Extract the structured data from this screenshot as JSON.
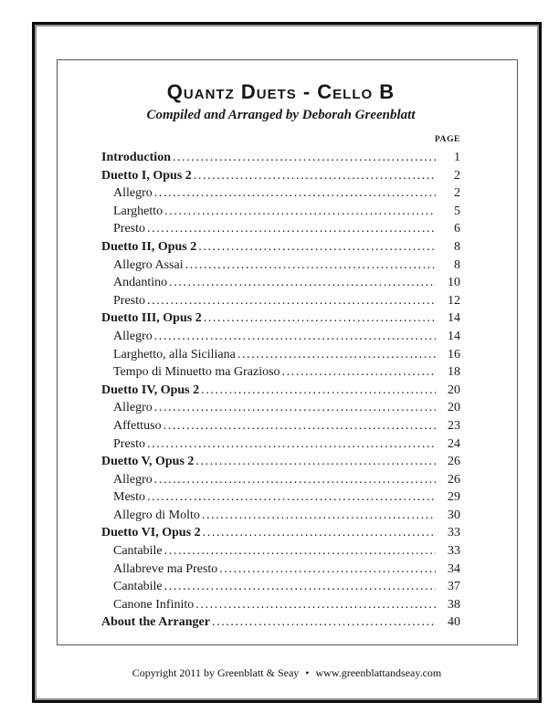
{
  "header": {
    "title": "Quantz Duets - Cello B",
    "subtitle": "Compiled and Arranged by Deborah Greenblatt"
  },
  "toc": {
    "page_column_label": "PAGE",
    "entries": [
      {
        "label": "Introduction",
        "page": "1",
        "level": 0
      },
      {
        "label": "Duetto I, Opus 2",
        "page": "2",
        "level": 0
      },
      {
        "label": "Allegro",
        "page": "2",
        "level": 1
      },
      {
        "label": "Larghetto",
        "page": "5",
        "level": 1
      },
      {
        "label": "Presto",
        "page": "6",
        "level": 1
      },
      {
        "label": "Duetto II, Opus 2",
        "page": "8",
        "level": 0
      },
      {
        "label": "Allegro Assai",
        "page": "8",
        "level": 1
      },
      {
        "label": "Andantino",
        "page": "10",
        "level": 1
      },
      {
        "label": "Presto",
        "page": "12",
        "level": 1
      },
      {
        "label": "Duetto III, Opus 2",
        "page": "14",
        "level": 0
      },
      {
        "label": "Allegro",
        "page": "14",
        "level": 1
      },
      {
        "label": "Larghetto, alla Siciliana",
        "page": "16",
        "level": 1
      },
      {
        "label": "Tempo di Minuetto ma Grazioso",
        "page": "18",
        "level": 1
      },
      {
        "label": "Duetto IV, Opus 2",
        "page": "20",
        "level": 0
      },
      {
        "label": "Allegro",
        "page": "20",
        "level": 1
      },
      {
        "label": "Affettuso",
        "page": "23",
        "level": 1
      },
      {
        "label": "Presto",
        "page": "24",
        "level": 1
      },
      {
        "label": "Duetto V, Opus 2",
        "page": "26",
        "level": 0
      },
      {
        "label": "Allegro",
        "page": "26",
        "level": 1
      },
      {
        "label": "Mesto",
        "page": "29",
        "level": 1
      },
      {
        "label": "Allegro di Molto",
        "page": "30",
        "level": 1
      },
      {
        "label": "Duetto VI, Opus 2",
        "page": "33",
        "level": 0
      },
      {
        "label": "Cantabile",
        "page": "33",
        "level": 1
      },
      {
        "label": "Allabreve ma Presto",
        "page": "34",
        "level": 1
      },
      {
        "label": "Cantabile",
        "page": "37",
        "level": 1
      },
      {
        "label": "Canone Infinito",
        "page": "38",
        "level": 1
      },
      {
        "label": "About the Arranger",
        "page": "40",
        "level": 0
      }
    ]
  },
  "footer": {
    "copyright": "Copyright 2011 by Greenblatt & Seay",
    "separator": "•",
    "website": "www.greenblattandseay.com"
  },
  "colors": {
    "ink": "#1a1a1a",
    "frame_black": "#0b0b0b",
    "frame_gray": "#8f8f8f",
    "inner_border": "#575757",
    "background": "#fefefe"
  }
}
